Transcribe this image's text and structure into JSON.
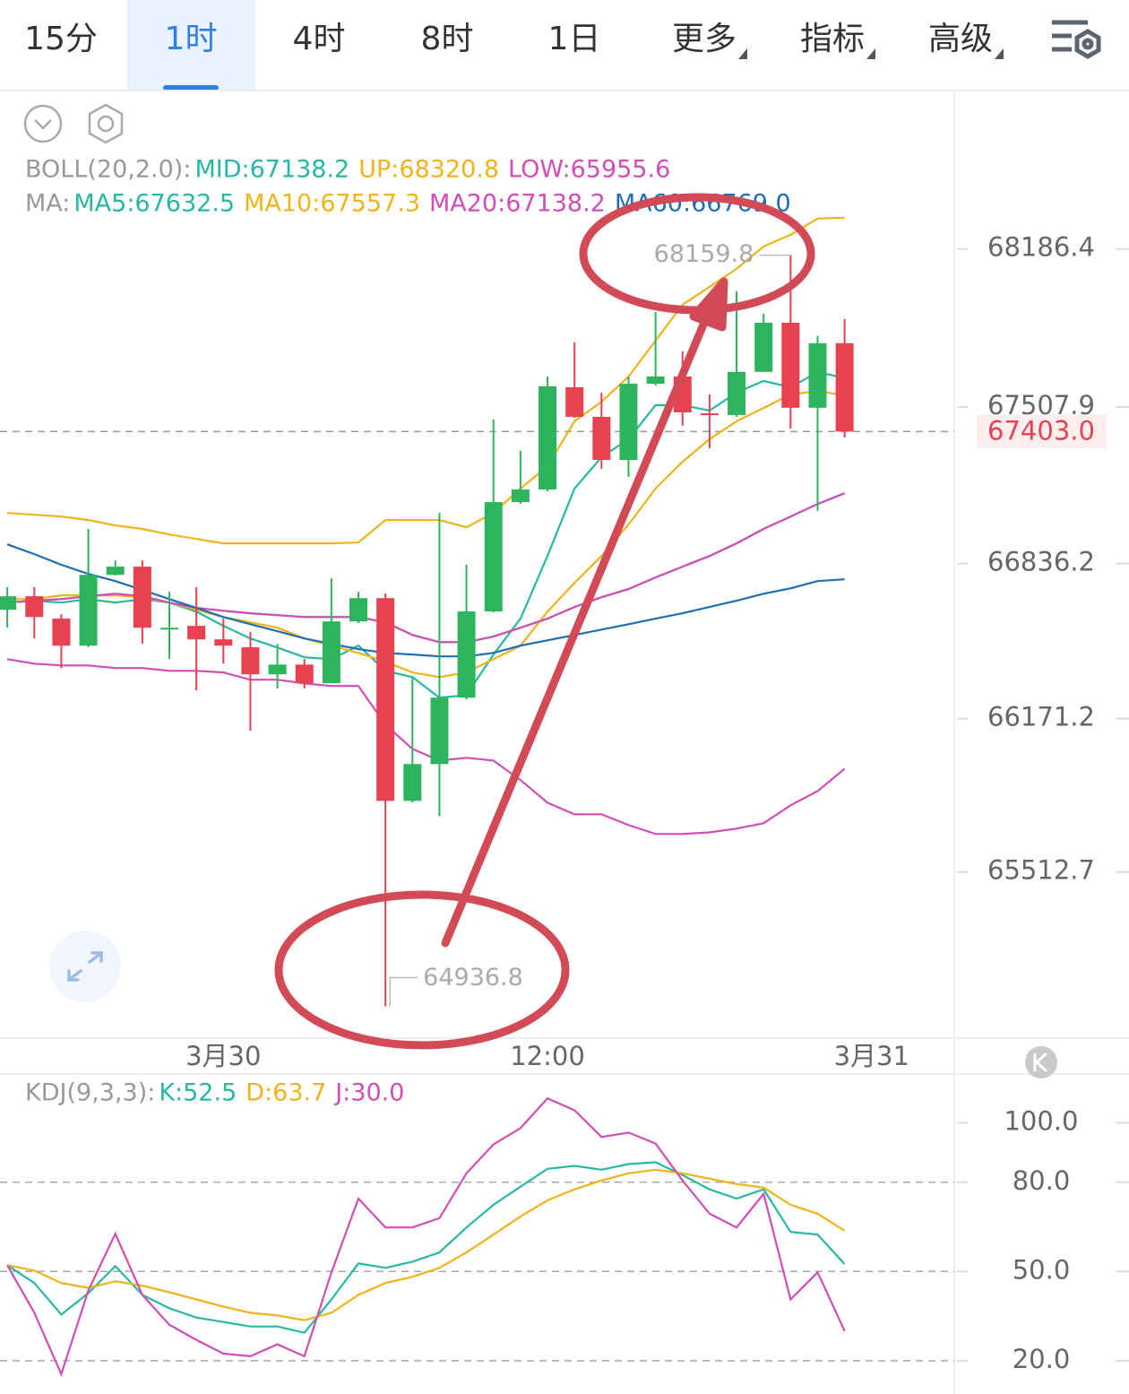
{
  "tabs": [
    {
      "label": "15分"
    },
    {
      "label": "1时"
    },
    {
      "label": "4时"
    },
    {
      "label": "8时"
    },
    {
      "label": "1日"
    },
    {
      "label": "更多",
      "dropdown": true
    },
    {
      "label": "指标",
      "dropdown": true
    },
    {
      "label": "高级",
      "dropdown": true
    }
  ],
  "active_tab": 1,
  "chart_data": [
    {
      "type": "candlestick",
      "up_color": "#2db55d",
      "down_color": "#e8414f",
      "xlim": [
        -0.27,
        35.06
      ],
      "xticks": [
        {
          "value": 8,
          "label": "3月30"
        },
        {
          "value": 20,
          "label": "12:00"
        },
        {
          "value": 32,
          "label": "3月31"
        }
      ],
      "ylim": [
        64800,
        68870
      ],
      "yticks": [
        68186.4,
        67507.9,
        66836.2,
        66171.2,
        65512.7
      ],
      "last_price": {
        "value": 67403.0,
        "label": "67403.0"
      },
      "candles": [
        {
          "open": 66638,
          "high": 66735,
          "low": 66561,
          "close": 66696
        },
        {
          "open": 66696,
          "high": 66735,
          "low": 66515,
          "close": 66607
        },
        {
          "open": 66600,
          "high": 66619,
          "low": 66388,
          "close": 66484
        },
        {
          "open": 66484,
          "high": 66985,
          "low": 66477,
          "close": 66788
        },
        {
          "open": 66788,
          "high": 66850,
          "low": 66785,
          "close": 66823
        },
        {
          "open": 66823,
          "high": 66850,
          "low": 66492,
          "close": 66561
        },
        {
          "open": 66554,
          "high": 66715,
          "low": 66427,
          "close": 66561
        },
        {
          "open": 66569,
          "high": 66735,
          "low": 66292,
          "close": 66511
        },
        {
          "open": 66511,
          "high": 66600,
          "low": 66407,
          "close": 66484
        },
        {
          "open": 66477,
          "high": 66542,
          "low": 66119,
          "close": 66361
        },
        {
          "open": 66361,
          "high": 66492,
          "low": 66300,
          "close": 66403
        },
        {
          "open": 66403,
          "high": 66427,
          "low": 66300,
          "close": 66323
        },
        {
          "open": 66323,
          "high": 66773,
          "low": 66323,
          "close": 66588
        },
        {
          "open": 66588,
          "high": 66715,
          "low": 66581,
          "close": 66688
        },
        {
          "open": 66688,
          "high": 66708,
          "low": 64936.8,
          "close": 65818
        },
        {
          "open": 65818,
          "high": 66350,
          "low": 65811,
          "close": 65976
        },
        {
          "open": 65976,
          "high": 67054,
          "low": 65753,
          "close": 66261
        },
        {
          "open": 66261,
          "high": 66831,
          "low": 66253,
          "close": 66631
        },
        {
          "open": 66631,
          "high": 67455,
          "low": 66627,
          "close": 67100
        },
        {
          "open": 67100,
          "high": 67320,
          "low": 67093,
          "close": 67154
        },
        {
          "open": 67154,
          "high": 67639,
          "low": 67146,
          "close": 67597
        },
        {
          "open": 67593,
          "high": 67786,
          "low": 67462,
          "close": 67466
        },
        {
          "open": 67466,
          "high": 67570,
          "low": 67243,
          "close": 67281
        },
        {
          "open": 67281,
          "high": 67639,
          "low": 67208,
          "close": 67608
        },
        {
          "open": 67608,
          "high": 67916,
          "low": 67601,
          "close": 67639
        },
        {
          "open": 67639,
          "high": 67747,
          "low": 67428,
          "close": 67485
        },
        {
          "open": 67481,
          "high": 67562,
          "low": 67331,
          "close": 67474
        },
        {
          "open": 67474,
          "high": 68005,
          "low": 67466,
          "close": 67659
        },
        {
          "open": 67659,
          "high": 67909,
          "low": 67659,
          "close": 67870
        },
        {
          "open": 67870,
          "high": 68159.8,
          "low": 67416,
          "close": 67505
        },
        {
          "open": 67505,
          "high": 67813,
          "low": 67062,
          "close": 67782
        },
        {
          "open": 67782,
          "high": 67886,
          "low": 67377,
          "close": 67403
        }
      ],
      "indicators": [
        {
          "title": "BOLL(20,2.0):",
          "series": [
            {
              "label": "MID:67138.2",
              "color": "#26b8a3",
              "values": [
                66669,
                66677,
                66684,
                66696,
                66707,
                66696,
                66669,
                66646,
                66634,
                66623,
                66615,
                66607,
                66607,
                66607,
                66584,
                66530,
                66499,
                66499,
                66523,
                66561,
                66600,
                66650,
                66692,
                66727,
                66777,
                66823,
                66869,
                66923,
                66985,
                67038,
                67092,
                67138.2
              ]
            },
            {
              "label": "UP:68320.8",
              "color": "#f0b31a",
              "values": [
                67054,
                67046,
                67038,
                67023,
                67000,
                66985,
                66961,
                66942,
                66923,
                66923,
                66923,
                66923,
                66923,
                66927,
                67023,
                67023,
                67023,
                66992,
                67054,
                67158,
                67254,
                67447,
                67531,
                67639,
                67793,
                67947,
                68024,
                68101,
                68197,
                68247,
                68317,
                68320.8
              ]
            },
            {
              "label": "LOW:65955.6",
              "color": "#d24db5",
              "values": [
                66426,
                66407,
                66399,
                66399,
                66388,
                66388,
                66376,
                66376,
                66369,
                66338,
                66338,
                66322,
                66311,
                66311,
                66145,
                66041,
                65991,
                66003,
                65991,
                65907,
                65810,
                65760,
                65760,
                65714,
                65676,
                65676,
                65683,
                65699,
                65722,
                65799,
                65860,
                65955.6
              ]
            }
          ]
        },
        {
          "title": "MA:",
          "series": [
            {
              "label": "MA5:67632.5",
              "color": "#26b8a3",
              "values": [
                66669,
                66677,
                66669,
                66684,
                66669,
                66684,
                66669,
                66630,
                66569,
                66515,
                66476,
                66434,
                66426,
                66484,
                66376,
                66349,
                66261,
                66272,
                66446,
                66600,
                66869,
                67158,
                67293,
                67370,
                67516,
                67516,
                67493,
                67570,
                67620,
                67593,
                67658,
                67632.5
              ]
            },
            {
              "label": "MA10:67557.3",
              "color": "#f0b31a",
              "values": [
                66684,
                66684,
                66700,
                66700,
                66700,
                66692,
                66669,
                66638,
                66607,
                66584,
                66561,
                66515,
                66484,
                66453,
                66415,
                66369,
                66349,
                66369,
                66426,
                66484,
                66630,
                66754,
                66869,
                67004,
                67158,
                67273,
                67370,
                67447,
                67504,
                67562,
                67577,
                67557.3
              ]
            },
            {
              "label": "MA20:67138.2",
              "color": "#d24db5",
              "values": [
                66669,
                66677,
                66684,
                66696,
                66707,
                66696,
                66669,
                66646,
                66634,
                66623,
                66615,
                66607,
                66607,
                66607,
                66584,
                66530,
                66499,
                66499,
                66523,
                66561,
                66600,
                66650,
                66692,
                66727,
                66777,
                66823,
                66869,
                66923,
                66985,
                67038,
                67092,
                67138.2
              ]
            },
            {
              "label": "MA60:66769.0",
              "color": "#1f6db3",
              "values": [
                66919,
                66877,
                66831,
                66792,
                66761,
                66723,
                66684,
                66646,
                66607,
                66576,
                66546,
                66515,
                66492,
                66469,
                66453,
                66446,
                66438,
                66438,
                66453,
                66484,
                66507,
                66530,
                66553,
                66576,
                66600,
                66623,
                66650,
                66677,
                66707,
                66730,
                66761,
                66769
              ]
            }
          ]
        }
      ]
    },
    {
      "type": "line",
      "title": "KDJ(9,3,3):",
      "xlim": [
        -0.27,
        35.06
      ],
      "ylim": [
        8.8,
        116.4
      ],
      "yticks": [
        {
          "value": 100,
          "label": "100.0"
        },
        {
          "value": 80,
          "label": "80.0"
        },
        {
          "value": 50,
          "label": "50.0"
        },
        {
          "value": 20,
          "label": "20.0"
        }
      ],
      "levels": [
        80,
        50,
        20
      ],
      "series": [
        {
          "label": "K:52.5",
          "color": "#26b8a3",
          "values": [
            52.1,
            46.1,
            35.5,
            42.7,
            51.8,
            42.1,
            37.6,
            34.5,
            33.0,
            31.5,
            31.5,
            29.4,
            40.6,
            52.7,
            51.2,
            53.3,
            56.4,
            64.8,
            72.4,
            78.5,
            84.5,
            85.5,
            84.2,
            86.1,
            86.7,
            82.4,
            77.6,
            74.5,
            77.6,
            63.3,
            62.4,
            52.5
          ]
        },
        {
          "label": "D:63.7",
          "color": "#f0b31a",
          "values": [
            52.1,
            50.3,
            46.1,
            44.5,
            46.7,
            45.2,
            43.0,
            40.6,
            38.2,
            36.1,
            35.2,
            33.6,
            36.1,
            42.1,
            46.1,
            48.2,
            51.2,
            56.4,
            62.4,
            68.5,
            73.9,
            77.6,
            80.6,
            83.0,
            84.2,
            83.0,
            81.2,
            79.4,
            78.2,
            72.4,
            69.4,
            63.7
          ]
        },
        {
          "label": "J:30.0",
          "color": "#d24db5",
          "values": [
            52.1,
            36.1,
            15.5,
            43.6,
            62.7,
            42.1,
            32.1,
            27.0,
            22.4,
            21.5,
            25.5,
            21.5,
            49.7,
            74.5,
            64.8,
            64.8,
            67.9,
            83.0,
            92.7,
            98.2,
            108.2,
            104.2,
            95.2,
            96.7,
            93.0,
            80.6,
            69.4,
            64.8,
            76.1,
            40.6,
            49.7,
            30.0
          ]
        }
      ]
    }
  ]
}
